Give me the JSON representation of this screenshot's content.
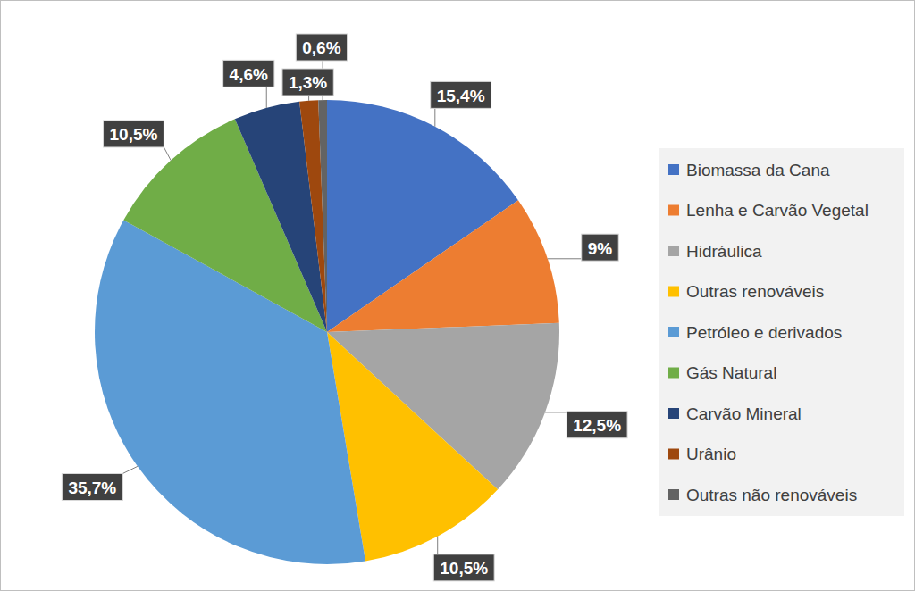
{
  "chart_data": {
    "type": "pie",
    "categories": [
      "Biomassa da Cana",
      "Lenha e Carvão Vegetal",
      "Hidráulica",
      "Outras renováveis",
      "Petróleo e derivados",
      "Gás Natural",
      "Carvão Mineral",
      "Urânio",
      "Outras não renováveis"
    ],
    "values": [
      15.4,
      9,
      12.5,
      10.5,
      35.7,
      10.5,
      4.6,
      1.3,
      0.6
    ],
    "value_labels": [
      "15,4%",
      "9%",
      "12,5%",
      "10,5%",
      "35,7%",
      "10,5%",
      "4,6%",
      "1,3%",
      "0,6%"
    ],
    "colors": [
      "#4472c4",
      "#ed7d31",
      "#a5a5a5",
      "#ffc000",
      "#5b9bd5",
      "#70ad47",
      "#264478",
      "#9e480e",
      "#636363"
    ],
    "data_labels": true,
    "legend": "right"
  }
}
